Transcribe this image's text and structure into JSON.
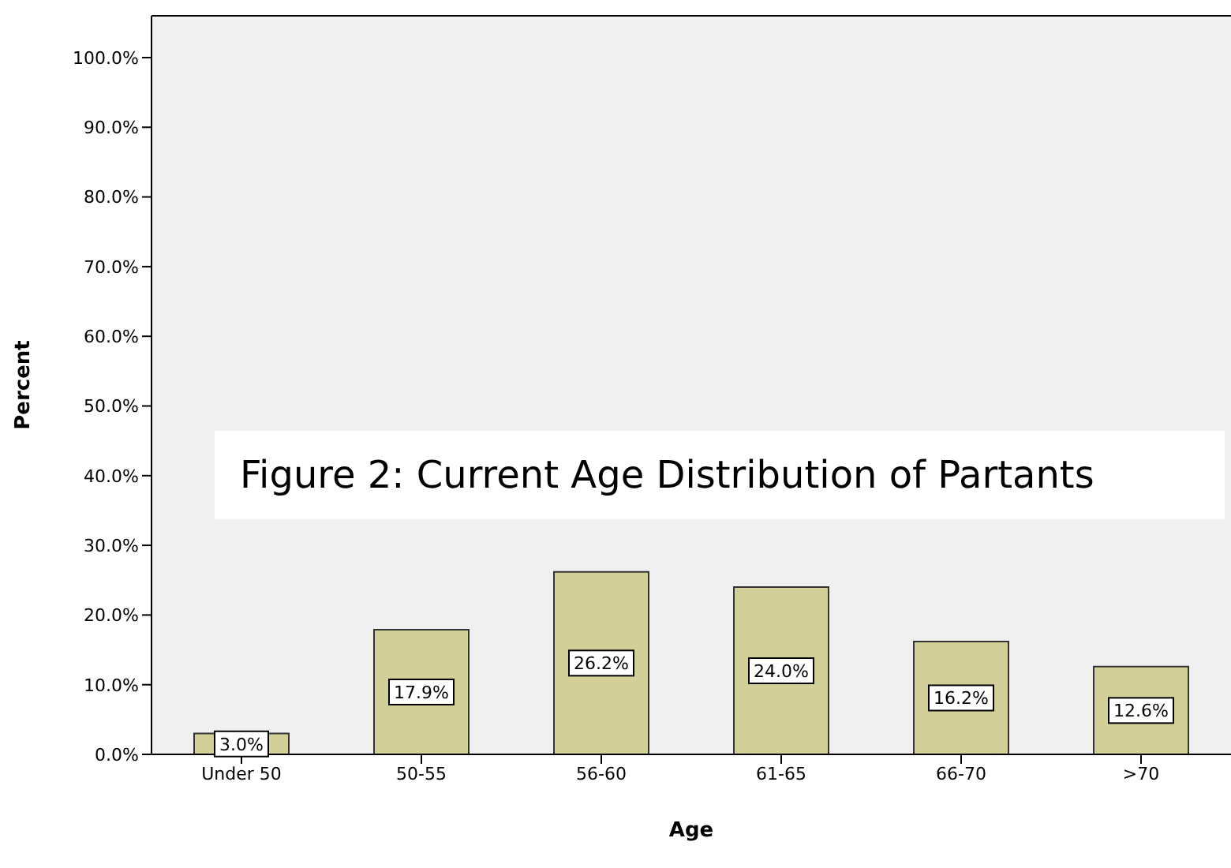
{
  "chart_data": {
    "type": "bar",
    "xlabel": "Age",
    "ylabel": "Percent",
    "categories": [
      "Under 50",
      "50-55",
      "56-60",
      "61-65",
      "66-70",
      ">70"
    ],
    "values": [
      3.0,
      17.9,
      26.2,
      24.0,
      16.2,
      12.6
    ],
    "value_labels": [
      "3.0%",
      "17.9%",
      "26.2%",
      "24.0%",
      "16.2%",
      "12.6%"
    ],
    "color": "#d3cf98",
    "ylim": [
      0,
      106
    ],
    "yticks": [
      {
        "value": 0,
        "label": "0.0%"
      },
      {
        "value": 10,
        "label": "10.0%"
      },
      {
        "value": 20,
        "label": "20.0%"
      },
      {
        "value": 30,
        "label": "30.0%"
      },
      {
        "value": 40,
        "label": "40.0%"
      },
      {
        "value": 50,
        "label": "50.0%"
      },
      {
        "value": 60,
        "label": "60.0%"
      },
      {
        "value": 70,
        "label": "70.0%"
      },
      {
        "value": 80,
        "label": "80.0%"
      },
      {
        "value": 90,
        "label": "90.0%"
      },
      {
        "value": 100,
        "label": "100.0%"
      }
    ],
    "annotations": [
      "Figure 2: Current Age Distribution of Partants"
    ]
  }
}
